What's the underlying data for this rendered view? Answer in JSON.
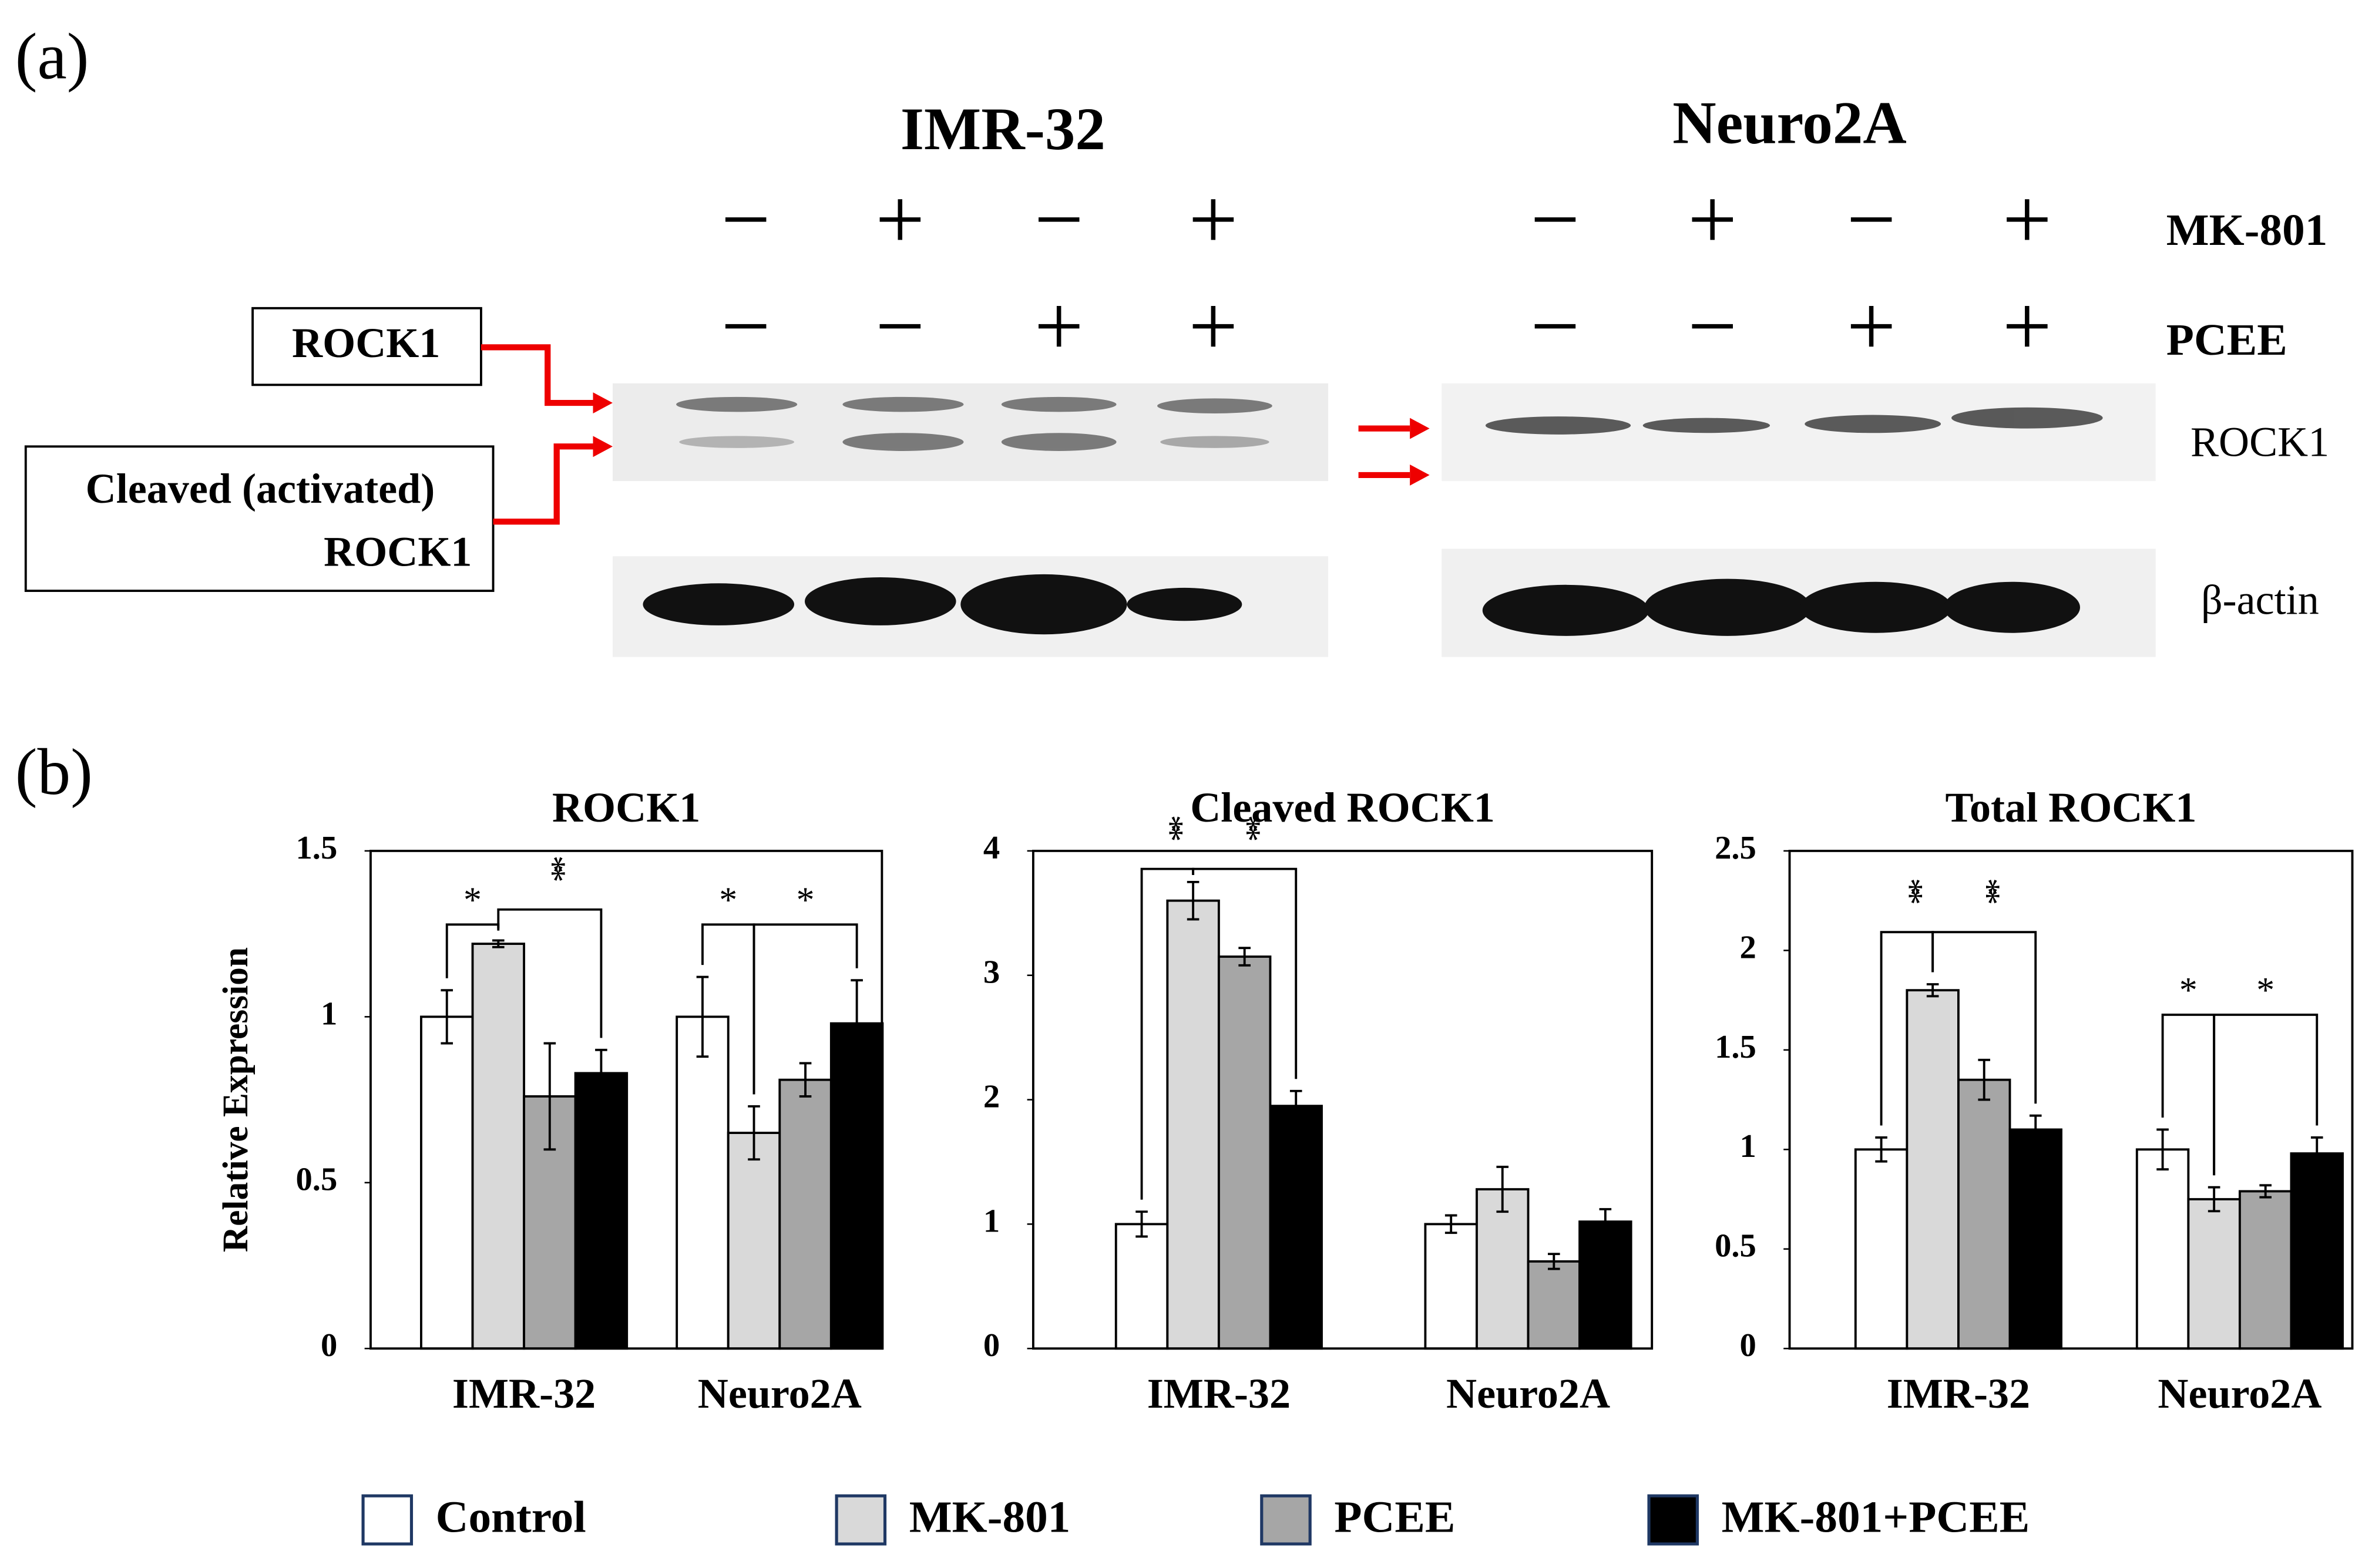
{
  "panel_a": {
    "label": "(a)",
    "cell_lines": [
      "IMR-32",
      "Neuro2A"
    ],
    "treatments": [
      {
        "name": "MK-801",
        "signs": [
          "−",
          "+",
          "−",
          "+"
        ]
      },
      {
        "name": "PCEE",
        "signs": [
          "−",
          "−",
          "+",
          "+"
        ]
      }
    ],
    "blot_labels": [
      "ROCK1",
      "β-actin"
    ],
    "band_labels": {
      "full": "ROCK1",
      "cleaved": [
        "Cleaved (activated)",
        "ROCK1"
      ]
    }
  },
  "panel_b": {
    "label": "(b)"
  },
  "chart_data": [
    {
      "type": "bar",
      "title": "ROCK1",
      "y_label": "Relative Expression",
      "categories": [
        "IMR-32",
        "Neuro2A"
      ],
      "series": [
        {
          "name": "Control",
          "color": "#ffffff",
          "values": [
            1.0,
            1.0
          ],
          "errors": [
            0.08,
            0.12
          ]
        },
        {
          "name": "MK-801",
          "color": "#d9d9d9",
          "values": [
            1.22,
            0.65
          ],
          "errors": [
            0.01,
            0.08
          ]
        },
        {
          "name": "PCEE",
          "color": "#a6a6a6",
          "values": [
            0.76,
            0.81
          ],
          "errors": [
            0.16,
            0.05
          ]
        },
        {
          "name": "MK-801+PCEE",
          "color": "#000000",
          "values": [
            0.83,
            0.98
          ],
          "errors": [
            0.07,
            0.13
          ]
        }
      ],
      "ylim": [
        0,
        1.5
      ],
      "yticks": [
        0,
        0.5,
        1,
        1.5
      ],
      "significance": [
        "*",
        "**",
        "*",
        "*"
      ]
    },
    {
      "type": "bar",
      "title": "Cleaved ROCK1",
      "categories": [
        "IMR-32",
        "Neuro2A"
      ],
      "series": [
        {
          "name": "Control",
          "color": "#ffffff",
          "values": [
            1.0,
            1.0
          ],
          "errors": [
            0.1,
            0.07
          ]
        },
        {
          "name": "MK-801",
          "color": "#d9d9d9",
          "values": [
            3.6,
            1.28
          ],
          "errors": [
            0.15,
            0.18
          ]
        },
        {
          "name": "PCEE",
          "color": "#a6a6a6",
          "values": [
            3.15,
            0.7
          ],
          "errors": [
            0.07,
            0.06
          ]
        },
        {
          "name": "MK-801+PCEE",
          "color": "#000000",
          "values": [
            1.95,
            1.02
          ],
          "errors": [
            0.12,
            0.1
          ]
        }
      ],
      "ylim": [
        0,
        4
      ],
      "yticks": [
        0,
        1,
        2,
        3,
        4
      ],
      "significance": [
        "**",
        "**"
      ]
    },
    {
      "type": "bar",
      "title": "Total ROCK1",
      "categories": [
        "IMR-32",
        "Neuro2A"
      ],
      "series": [
        {
          "name": "Control",
          "color": "#ffffff",
          "values": [
            1.0,
            1.0
          ],
          "errors": [
            0.06,
            0.1
          ]
        },
        {
          "name": "MK-801",
          "color": "#d9d9d9",
          "values": [
            1.8,
            0.75
          ],
          "errors": [
            0.03,
            0.06
          ]
        },
        {
          "name": "PCEE",
          "color": "#a6a6a6",
          "values": [
            1.35,
            0.79
          ],
          "errors": [
            0.1,
            0.03
          ]
        },
        {
          "name": "MK-801+PCEE",
          "color": "#000000",
          "values": [
            1.1,
            0.98
          ],
          "errors": [
            0.07,
            0.08
          ]
        }
      ],
      "ylim": [
        0,
        2.5
      ],
      "yticks": [
        0,
        0.5,
        1,
        1.5,
        2,
        2.5
      ],
      "significance": [
        "**",
        "**",
        "*",
        "*"
      ]
    }
  ]
}
